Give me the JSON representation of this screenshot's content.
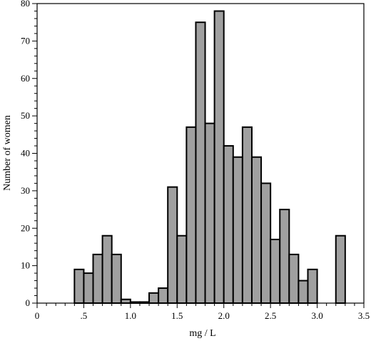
{
  "chart_data": {
    "type": "bar",
    "title": "",
    "xlabel": "mg / L",
    "ylabel": "Number of women",
    "xlim": [
      0,
      3.5
    ],
    "ylim": [
      0,
      80
    ],
    "bin_width": 0.1,
    "grid": false,
    "legend": "none",
    "colors": {
      "bar_fill": "#a0a0a0",
      "bar_stroke": "#000000",
      "axis": "#000000"
    },
    "x_ticks": [
      {
        "value": 0,
        "label": "0"
      },
      {
        "value": 0.5,
        "label": ".5"
      },
      {
        "value": 1.0,
        "label": "1.0"
      },
      {
        "value": 1.5,
        "label": "1.5"
      },
      {
        "value": 2.0,
        "label": "2.0"
      },
      {
        "value": 2.5,
        "label": "2.5"
      },
      {
        "value": 3.0,
        "label": "3.0"
      },
      {
        "value": 3.5,
        "label": "3.5"
      }
    ],
    "y_ticks": [
      {
        "value": 0,
        "label": "0"
      },
      {
        "value": 10,
        "label": "10"
      },
      {
        "value": 20,
        "label": "20"
      },
      {
        "value": 30,
        "label": "30"
      },
      {
        "value": 40,
        "label": "40"
      },
      {
        "value": 50,
        "label": "50"
      },
      {
        "value": 60,
        "label": "60"
      },
      {
        "value": 70,
        "label": "70"
      },
      {
        "value": 80,
        "label": "80"
      }
    ],
    "bins": [
      {
        "x0": 0.4,
        "value": 9
      },
      {
        "x0": 0.5,
        "value": 8
      },
      {
        "x0": 0.6,
        "value": 13
      },
      {
        "x0": 0.7,
        "value": 18
      },
      {
        "x0": 0.8,
        "value": 13
      },
      {
        "x0": 0.9,
        "value": 1
      },
      {
        "x0": 1.0,
        "value": 0.3
      },
      {
        "x0": 1.1,
        "value": 0.3
      },
      {
        "x0": 1.2,
        "value": 2.7
      },
      {
        "x0": 1.3,
        "value": 4
      },
      {
        "x0": 1.4,
        "value": 31
      },
      {
        "x0": 1.5,
        "value": 18
      },
      {
        "x0": 1.6,
        "value": 47
      },
      {
        "x0": 1.7,
        "value": 75
      },
      {
        "x0": 1.8,
        "value": 48
      },
      {
        "x0": 1.9,
        "value": 78
      },
      {
        "x0": 2.0,
        "value": 42
      },
      {
        "x0": 2.1,
        "value": 39
      },
      {
        "x0": 2.2,
        "value": 47
      },
      {
        "x0": 2.3,
        "value": 39
      },
      {
        "x0": 2.4,
        "value": 32
      },
      {
        "x0": 2.5,
        "value": 17
      },
      {
        "x0": 2.6,
        "value": 25
      },
      {
        "x0": 2.7,
        "value": 13
      },
      {
        "x0": 2.8,
        "value": 6
      },
      {
        "x0": 2.9,
        "value": 9
      },
      {
        "x0": 3.2,
        "value": 18
      }
    ]
  }
}
